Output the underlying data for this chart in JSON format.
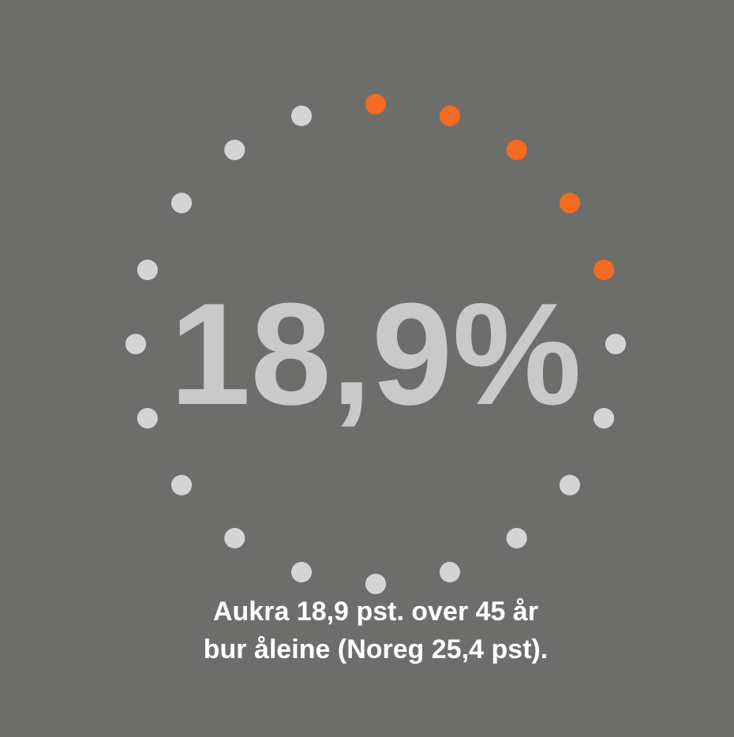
{
  "chart_data": {
    "type": "other",
    "values": [
      18.9
    ],
    "value_labels": [
      "18,9%"
    ],
    "annotations": [
      "Aukra 18,9 pst. over 45 år",
      "bur åleine (Noreg 25,4 pst)."
    ]
  }
}
